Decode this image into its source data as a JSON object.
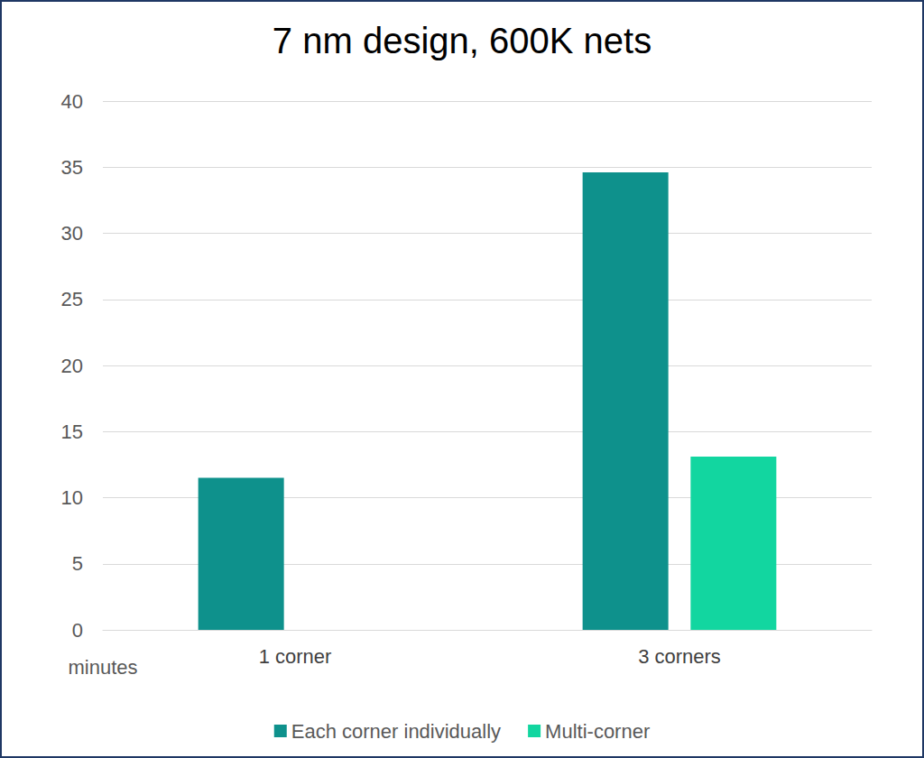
{
  "chart_data": {
    "type": "bar",
    "title": "7 nm design, 600K nets",
    "y_label": "minutes",
    "categories": [
      "1 corner",
      "3 corners"
    ],
    "series": [
      {
        "name": "Each corner individually",
        "color": "#0e918c",
        "values": [
          11.5,
          34.6
        ]
      },
      {
        "name": "Multi-corner",
        "color": "#12d6a0",
        "values": [
          null,
          13.1
        ]
      }
    ],
    "ylim": [
      0,
      40
    ],
    "yticks": [
      0,
      5,
      10,
      15,
      20,
      25,
      30,
      35,
      40
    ],
    "grid": true,
    "legend": "bottom"
  }
}
